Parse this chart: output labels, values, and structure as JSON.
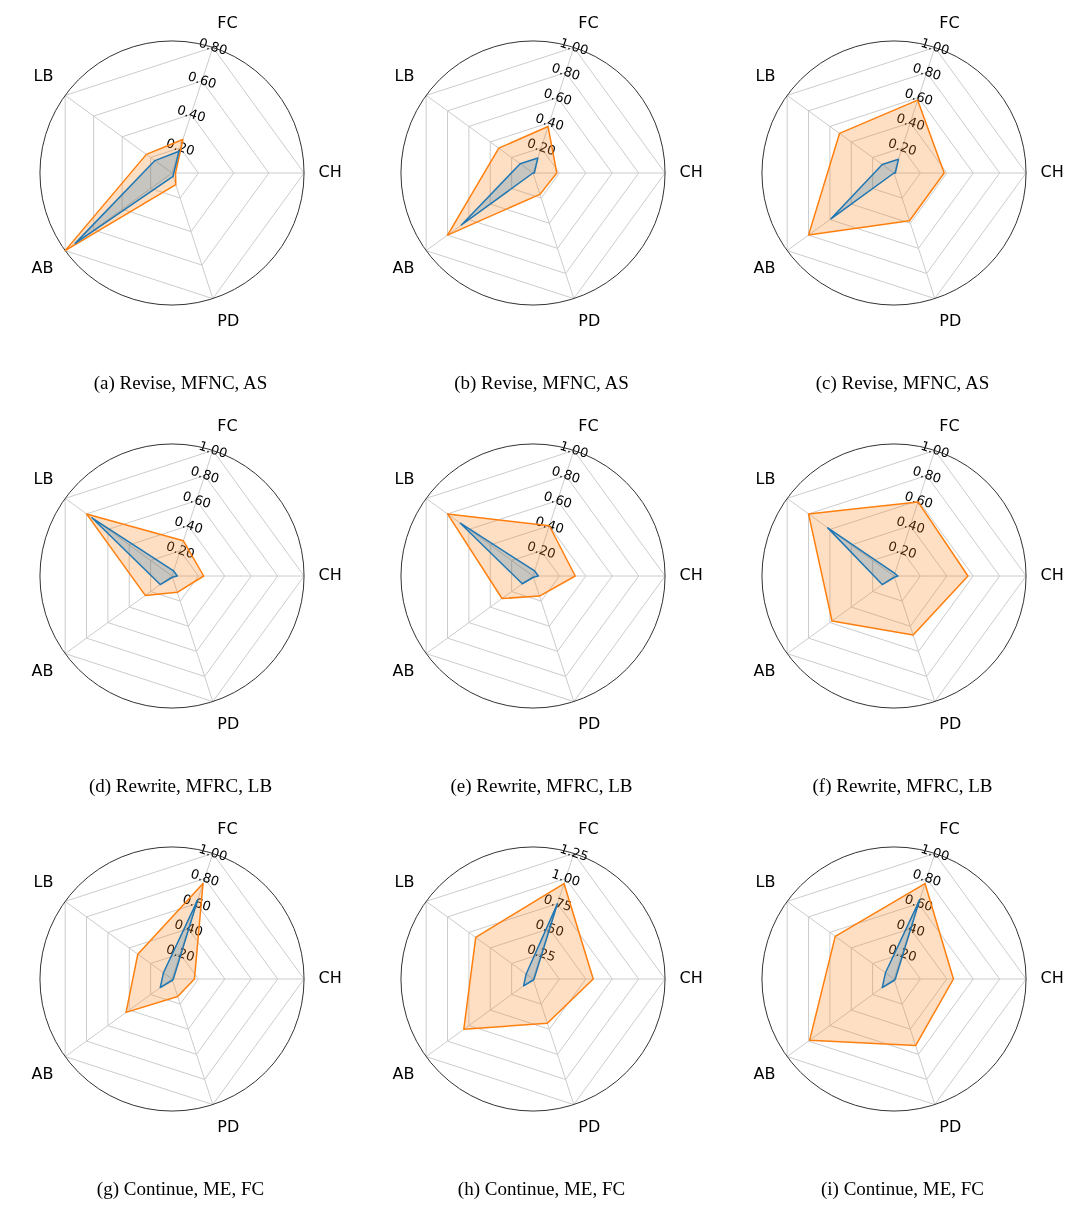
{
  "chart_data": [
    {
      "type": "radar",
      "title": "(a) Revise, MFNC, AS",
      "categories": [
        "FC",
        "CH",
        "PD",
        "AB",
        "LB"
      ],
      "ylim": [
        0.05,
        0.8
      ],
      "yticks": [
        {
          "value": 0.2,
          "label": "0.20"
        },
        {
          "value": 0.4,
          "label": "0.40"
        },
        {
          "value": 0.6,
          "label": "0.60"
        },
        {
          "value": 0.8,
          "label": "0.80"
        }
      ],
      "grid": true,
      "series": [
        {
          "color": "#ff7f0e",
          "values": [
            0.25,
            0.07,
            0.12,
            0.8,
            0.23
          ]
        },
        {
          "color": "#1f77b4",
          "values": [
            0.18,
            0.06,
            0.07,
            0.73,
            0.17
          ]
        }
      ]
    },
    {
      "type": "radar",
      "title": "(b) Revise, MFNC, AS",
      "categories": [
        "FC",
        "CH",
        "PD",
        "AB",
        "LB"
      ],
      "ylim": [
        0,
        1.0
      ],
      "yticks": [
        {
          "value": 0.2,
          "label": "0.20"
        },
        {
          "value": 0.4,
          "label": "0.40"
        },
        {
          "value": 0.6,
          "label": "0.60"
        },
        {
          "value": 0.8,
          "label": "0.80"
        },
        {
          "value": 1.0,
          "label": "1.00"
        }
      ],
      "grid": true,
      "series": [
        {
          "color": "#ff7f0e",
          "values": [
            0.37,
            0.18,
            0.17,
            0.8,
            0.32
          ]
        },
        {
          "color": "#1f77b4",
          "values": [
            0.12,
            0.01,
            0.0,
            0.67,
            0.12
          ]
        }
      ]
    },
    {
      "type": "radar",
      "title": "(c) Revise, MFNC, AS",
      "categories": [
        "FC",
        "CH",
        "PD",
        "AB",
        "LB"
      ],
      "ylim": [
        0,
        1.0
      ],
      "yticks": [
        {
          "value": 0.2,
          "label": "0.20"
        },
        {
          "value": 0.4,
          "label": "0.40"
        },
        {
          "value": 0.6,
          "label": "0.60"
        },
        {
          "value": 0.8,
          "label": "0.80"
        },
        {
          "value": 1.0,
          "label": "1.00"
        }
      ],
      "grid": true,
      "series": [
        {
          "color": "#ff7f0e",
          "values": [
            0.58,
            0.38,
            0.38,
            0.8,
            0.51
          ]
        },
        {
          "color": "#1f77b4",
          "values": [
            0.11,
            0.01,
            0.0,
            0.59,
            0.11
          ]
        }
      ]
    },
    {
      "type": "radar",
      "title": "(d) Rewrite, MFRC, LB",
      "categories": [
        "FC",
        "CH",
        "PD",
        "AB",
        "LB"
      ],
      "ylim": [
        0,
        1.0
      ],
      "yticks": [
        {
          "value": 0.2,
          "label": "0.20"
        },
        {
          "value": 0.4,
          "label": "0.40"
        },
        {
          "value": 0.6,
          "label": "0.60"
        },
        {
          "value": 0.8,
          "label": "0.80"
        },
        {
          "value": 1.0,
          "label": "1.00"
        }
      ],
      "grid": true,
      "series": [
        {
          "color": "#ff7f0e",
          "values": [
            0.28,
            0.24,
            0.13,
            0.25,
            0.8
          ]
        },
        {
          "color": "#1f77b4",
          "values": [
            0.04,
            0.04,
            0.01,
            0.11,
            0.75
          ]
        }
      ]
    },
    {
      "type": "radar",
      "title": "(e) Rewrite, MFRC, LB",
      "categories": [
        "FC",
        "CH",
        "PD",
        "AB",
        "LB"
      ],
      "ylim": [
        0,
        1.0
      ],
      "yticks": [
        {
          "value": 0.2,
          "label": "0.20"
        },
        {
          "value": 0.4,
          "label": "0.40"
        },
        {
          "value": 0.6,
          "label": "0.60"
        },
        {
          "value": 0.8,
          "label": "0.80"
        },
        {
          "value": 1.0,
          "label": "1.00"
        }
      ],
      "grid": true,
      "series": [
        {
          "color": "#ff7f0e",
          "values": [
            0.4,
            0.32,
            0.16,
            0.29,
            0.8
          ]
        },
        {
          "color": "#1f77b4",
          "values": [
            0.04,
            0.04,
            0.01,
            0.1,
            0.68
          ]
        }
      ]
    },
    {
      "type": "radar",
      "title": "(f) Rewrite, MFRC, LB",
      "categories": [
        "FC",
        "CH",
        "PD",
        "AB",
        "LB"
      ],
      "ylim": [
        0,
        1.0
      ],
      "yticks": [
        {
          "value": 0.2,
          "label": "0.20"
        },
        {
          "value": 0.4,
          "label": "0.40"
        },
        {
          "value": 0.6,
          "label": "0.60"
        },
        {
          "value": 0.8,
          "label": "0.80"
        },
        {
          "value": 1.0,
          "label": "1.00"
        }
      ],
      "grid": true,
      "series": [
        {
          "color": "#ff7f0e",
          "values": [
            0.59,
            0.56,
            0.47,
            0.58,
            0.8
          ]
        },
        {
          "color": "#1f77b4",
          "values": [
            0.02,
            0.03,
            0.01,
            0.11,
            0.62
          ]
        }
      ]
    },
    {
      "type": "radar",
      "title": "(g) Continue, ME, FC",
      "categories": [
        "FC",
        "CH",
        "PD",
        "AB",
        "LB"
      ],
      "ylim": [
        0,
        1.0
      ],
      "yticks": [
        {
          "value": 0.2,
          "label": "0.20"
        },
        {
          "value": 0.4,
          "label": "0.40"
        },
        {
          "value": 0.6,
          "label": "0.60"
        },
        {
          "value": 0.8,
          "label": "0.80"
        },
        {
          "value": 1.0,
          "label": "1.00"
        }
      ],
      "grid": true,
      "series": [
        {
          "color": "#ff7f0e",
          "values": [
            0.76,
            0.17,
            0.14,
            0.43,
            0.32
          ]
        },
        {
          "color": "#1f77b4",
          "values": [
            0.63,
            0.01,
            0.01,
            0.11,
            0.08
          ]
        }
      ]
    },
    {
      "type": "radar",
      "title": "(h) Continue, ME, FC",
      "categories": [
        "FC",
        "CH",
        "PD",
        "AB",
        "LB"
      ],
      "ylim": [
        0,
        1.25
      ],
      "yticks": [
        {
          "value": 0.25,
          "label": "0.25"
        },
        {
          "value": 0.5,
          "label": "0.50"
        },
        {
          "value": 0.75,
          "label": "0.75"
        },
        {
          "value": 1.0,
          "label": "1.00"
        },
        {
          "value": 1.25,
          "label": "1.25"
        }
      ],
      "grid": true,
      "series": [
        {
          "color": "#ff7f0e",
          "values": [
            0.95,
            0.57,
            0.44,
            0.81,
            0.67
          ]
        },
        {
          "color": "#1f77b4",
          "values": [
            0.75,
            0.01,
            0.01,
            0.11,
            0.08
          ]
        }
      ]
    },
    {
      "type": "radar",
      "title": "(i) Continue, ME, FC",
      "categories": [
        "FC",
        "CH",
        "PD",
        "AB",
        "LB"
      ],
      "ylim": [
        0,
        1.0
      ],
      "yticks": [
        {
          "value": 0.2,
          "label": "0.20"
        },
        {
          "value": 0.4,
          "label": "0.40"
        },
        {
          "value": 0.6,
          "label": "0.60"
        },
        {
          "value": 0.8,
          "label": "0.80"
        },
        {
          "value": 1.0,
          "label": "1.00"
        }
      ],
      "grid": true,
      "series": [
        {
          "color": "#ff7f0e",
          "values": [
            0.76,
            0.45,
            0.53,
            0.79,
            0.55
          ]
        },
        {
          "color": "#1f77b4",
          "values": [
            0.63,
            0.01,
            0.01,
            0.11,
            0.08
          ]
        }
      ]
    }
  ]
}
